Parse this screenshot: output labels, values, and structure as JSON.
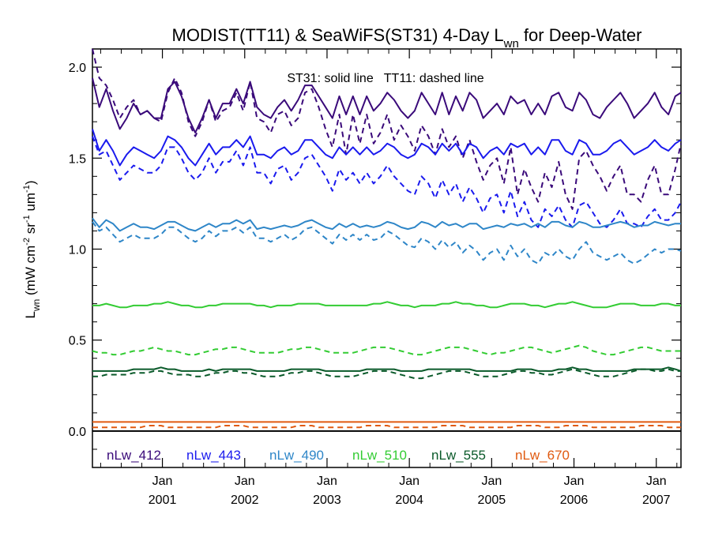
{
  "chart_data": {
    "type": "line",
    "title": {
      "main": "MODIST(TT11) & SeaWiFS(ST31) 4-Day L",
      "sub": "wn",
      "tail": " for Deep-Water"
    },
    "ylabel": {
      "main": "L",
      "sub": "wn",
      "unit_a": " (mW cm",
      "sup1": "-2",
      "unit_b": " sr",
      "sup2": "-1",
      "unit_c": " um",
      "sup3": "-1",
      "unit_d": ")"
    },
    "annotation": "ST31: solid line   TT11: dashed line",
    "xlim": [
      2000.15,
      2007.3
    ],
    "ylim": [
      -0.2,
      2.1
    ],
    "yticks": [
      {
        "value": 0.0,
        "label": "0.0"
      },
      {
        "value": 0.5,
        "label": "0.5"
      },
      {
        "value": 1.0,
        "label": "1.0"
      },
      {
        "value": 1.5,
        "label": "1.5"
      },
      {
        "value": 2.0,
        "label": "2.0"
      }
    ],
    "xticks": [
      {
        "value": 2001.0,
        "month": "Jan",
        "year": "2001"
      },
      {
        "value": 2002.0,
        "month": "Jan",
        "year": "2002"
      },
      {
        "value": 2003.0,
        "month": "Jan",
        "year": "2003"
      },
      {
        "value": 2004.0,
        "month": "Jan",
        "year": "2004"
      },
      {
        "value": 2005.0,
        "month": "Jan",
        "year": "2005"
      },
      {
        "value": 2006.0,
        "month": "Jan",
        "year": "2006"
      },
      {
        "value": 2007.0,
        "month": "Jan",
        "year": "2007"
      }
    ],
    "zero_line": 0.0,
    "series": [
      {
        "name": "nLw_412",
        "color": "#3a0a7a",
        "x_start": 2000.15,
        "x_step": 0.0833,
        "solid": [
          1.94,
          1.78,
          1.88,
          1.76,
          1.66,
          1.72,
          1.8,
          1.74,
          1.76,
          1.72,
          1.72,
          1.88,
          1.92,
          1.84,
          1.72,
          1.64,
          1.72,
          1.82,
          1.72,
          1.8,
          1.8,
          1.88,
          1.8,
          1.92,
          1.78,
          1.74,
          1.72,
          1.78,
          1.82,
          1.76,
          1.82,
          1.9,
          1.9,
          1.84,
          1.78,
          1.72,
          1.84,
          1.74,
          1.84,
          1.74,
          1.84,
          1.76,
          1.8,
          1.86,
          1.82,
          1.76,
          1.72,
          1.76,
          1.86,
          1.8,
          1.74,
          1.86,
          1.74,
          1.84,
          1.76,
          1.86,
          1.82,
          1.72,
          1.76,
          1.8,
          1.74,
          1.84,
          1.8,
          1.82,
          1.74,
          1.8,
          1.74,
          1.84,
          1.86,
          1.78,
          1.76,
          1.86,
          1.82,
          1.74,
          1.72,
          1.78,
          1.82,
          1.86,
          1.8,
          1.72,
          1.76,
          1.8,
          1.86,
          1.78,
          1.74,
          1.84,
          1.86
        ],
        "dashed": [
          2.1,
          1.94,
          1.9,
          1.82,
          1.72,
          1.78,
          1.82,
          1.74,
          1.76,
          1.72,
          1.7,
          1.86,
          1.94,
          1.86,
          1.7,
          1.62,
          1.7,
          1.82,
          1.7,
          1.76,
          1.78,
          1.86,
          1.76,
          1.92,
          1.72,
          1.7,
          1.64,
          1.74,
          1.76,
          1.68,
          1.72,
          1.86,
          1.88,
          1.78,
          1.66,
          1.56,
          1.74,
          1.52,
          1.74,
          1.58,
          1.74,
          1.58,
          1.64,
          1.74,
          1.6,
          1.68,
          1.62,
          1.54,
          1.68,
          1.62,
          1.52,
          1.66,
          1.56,
          1.62,
          1.5,
          1.6,
          1.48,
          1.38,
          1.46,
          1.5,
          1.36,
          1.56,
          1.3,
          1.44,
          1.34,
          1.26,
          1.42,
          1.34,
          1.48,
          1.3,
          1.22,
          1.5,
          1.54,
          1.46,
          1.4,
          1.32,
          1.4,
          1.46,
          1.3,
          1.3,
          1.26,
          1.38,
          1.46,
          1.3,
          1.3,
          1.44,
          1.58
        ]
      },
      {
        "name": "nLw_443",
        "color": "#1a1aee",
        "x_start": 2000.15,
        "x_step": 0.0833,
        "solid": [
          1.66,
          1.54,
          1.6,
          1.54,
          1.46,
          1.52,
          1.56,
          1.54,
          1.52,
          1.5,
          1.54,
          1.62,
          1.6,
          1.56,
          1.5,
          1.46,
          1.52,
          1.58,
          1.52,
          1.56,
          1.56,
          1.6,
          1.56,
          1.62,
          1.52,
          1.52,
          1.5,
          1.54,
          1.56,
          1.52,
          1.54,
          1.6,
          1.6,
          1.56,
          1.52,
          1.5,
          1.56,
          1.52,
          1.56,
          1.52,
          1.56,
          1.52,
          1.54,
          1.58,
          1.56,
          1.52,
          1.5,
          1.52,
          1.58,
          1.56,
          1.52,
          1.58,
          1.54,
          1.58,
          1.52,
          1.58,
          1.56,
          1.5,
          1.54,
          1.56,
          1.52,
          1.58,
          1.56,
          1.58,
          1.52,
          1.56,
          1.52,
          1.6,
          1.6,
          1.54,
          1.52,
          1.6,
          1.58,
          1.52,
          1.52,
          1.54,
          1.58,
          1.6,
          1.56,
          1.52,
          1.54,
          1.56,
          1.6,
          1.56,
          1.54,
          1.58,
          1.6
        ],
        "dashed": [
          1.62,
          1.52,
          1.54,
          1.46,
          1.38,
          1.42,
          1.46,
          1.44,
          1.42,
          1.42,
          1.46,
          1.56,
          1.56,
          1.5,
          1.42,
          1.38,
          1.42,
          1.5,
          1.42,
          1.48,
          1.48,
          1.54,
          1.46,
          1.56,
          1.42,
          1.42,
          1.36,
          1.44,
          1.46,
          1.38,
          1.42,
          1.5,
          1.52,
          1.46,
          1.4,
          1.32,
          1.44,
          1.38,
          1.42,
          1.36,
          1.42,
          1.36,
          1.4,
          1.46,
          1.4,
          1.36,
          1.32,
          1.3,
          1.4,
          1.36,
          1.28,
          1.38,
          1.3,
          1.36,
          1.26,
          1.34,
          1.28,
          1.2,
          1.28,
          1.3,
          1.2,
          1.32,
          1.18,
          1.26,
          1.16,
          1.12,
          1.22,
          1.18,
          1.24,
          1.16,
          1.12,
          1.24,
          1.26,
          1.2,
          1.14,
          1.12,
          1.16,
          1.22,
          1.14,
          1.14,
          1.12,
          1.18,
          1.22,
          1.16,
          1.16,
          1.2,
          1.26
        ]
      },
      {
        "name": "nLw_490",
        "color": "#2e86c8",
        "x_start": 2000.15,
        "x_step": 0.0833,
        "solid": [
          1.17,
          1.12,
          1.16,
          1.14,
          1.1,
          1.12,
          1.14,
          1.12,
          1.12,
          1.11,
          1.13,
          1.15,
          1.15,
          1.13,
          1.11,
          1.1,
          1.12,
          1.14,
          1.12,
          1.14,
          1.14,
          1.16,
          1.14,
          1.16,
          1.11,
          1.12,
          1.11,
          1.12,
          1.13,
          1.12,
          1.13,
          1.15,
          1.16,
          1.14,
          1.12,
          1.11,
          1.14,
          1.12,
          1.14,
          1.12,
          1.13,
          1.12,
          1.13,
          1.15,
          1.14,
          1.12,
          1.11,
          1.12,
          1.15,
          1.14,
          1.12,
          1.15,
          1.13,
          1.14,
          1.12,
          1.14,
          1.14,
          1.11,
          1.12,
          1.13,
          1.12,
          1.14,
          1.13,
          1.14,
          1.12,
          1.14,
          1.12,
          1.15,
          1.15,
          1.13,
          1.12,
          1.15,
          1.14,
          1.12,
          1.12,
          1.13,
          1.14,
          1.15,
          1.14,
          1.12,
          1.13,
          1.13,
          1.15,
          1.14,
          1.13,
          1.14,
          1.14
        ],
        "dashed": [
          1.15,
          1.1,
          1.12,
          1.08,
          1.04,
          1.06,
          1.08,
          1.06,
          1.06,
          1.06,
          1.08,
          1.12,
          1.12,
          1.09,
          1.06,
          1.04,
          1.06,
          1.1,
          1.07,
          1.1,
          1.1,
          1.12,
          1.09,
          1.12,
          1.06,
          1.06,
          1.04,
          1.06,
          1.08,
          1.05,
          1.07,
          1.11,
          1.12,
          1.09,
          1.06,
          1.03,
          1.08,
          1.05,
          1.08,
          1.05,
          1.08,
          1.05,
          1.06,
          1.1,
          1.08,
          1.05,
          1.02,
          1.01,
          1.06,
          1.04,
          1.0,
          1.05,
          1.01,
          1.04,
          0.98,
          1.02,
          0.99,
          0.94,
          0.98,
          1.0,
          0.94,
          1.02,
          0.96,
          1.0,
          0.94,
          0.92,
          0.98,
          0.96,
          1.0,
          0.96,
          0.94,
          1.0,
          1.04,
          0.98,
          0.96,
          0.94,
          0.96,
          0.98,
          0.94,
          0.92,
          0.94,
          0.97,
          1.0,
          0.98,
          1.0,
          1.0,
          0.99
        ]
      },
      {
        "name": "nLw_510",
        "color": "#33cc33",
        "x_start": 2000.15,
        "x_step": 0.0833,
        "solid_series": true,
        "solid": [
          0.69,
          0.69,
          0.7,
          0.69,
          0.68,
          0.68,
          0.69,
          0.69,
          0.69,
          0.7,
          0.7,
          0.71,
          0.7,
          0.69,
          0.69,
          0.68,
          0.68,
          0.69,
          0.69,
          0.7,
          0.7,
          0.7,
          0.7,
          0.7,
          0.69,
          0.69,
          0.68,
          0.69,
          0.69,
          0.69,
          0.7,
          0.7,
          0.7,
          0.7,
          0.69,
          0.69,
          0.69,
          0.69,
          0.69,
          0.69,
          0.69,
          0.7,
          0.7,
          0.71,
          0.7,
          0.69,
          0.69,
          0.68,
          0.69,
          0.69,
          0.69,
          0.7,
          0.7,
          0.71,
          0.7,
          0.7,
          0.69,
          0.69,
          0.68,
          0.68,
          0.69,
          0.7,
          0.7,
          0.7,
          0.69,
          0.69,
          0.68,
          0.69,
          0.7,
          0.7,
          0.71,
          0.7,
          0.69,
          0.68,
          0.68,
          0.68,
          0.69,
          0.7,
          0.7,
          0.7,
          0.69,
          0.69,
          0.69,
          0.7,
          0.7,
          0.69,
          0.69
        ],
        "dashed": [
          0.44,
          0.43,
          0.43,
          0.42,
          0.42,
          0.43,
          0.44,
          0.44,
          0.45,
          0.46,
          0.45,
          0.44,
          0.44,
          0.43,
          0.42,
          0.42,
          0.43,
          0.44,
          0.45,
          0.45,
          0.46,
          0.46,
          0.45,
          0.44,
          0.43,
          0.43,
          0.43,
          0.43,
          0.44,
          0.45,
          0.45,
          0.46,
          0.46,
          0.45,
          0.44,
          0.43,
          0.43,
          0.43,
          0.43,
          0.44,
          0.45,
          0.46,
          0.46,
          0.46,
          0.45,
          0.44,
          0.43,
          0.42,
          0.42,
          0.43,
          0.44,
          0.45,
          0.46,
          0.46,
          0.46,
          0.45,
          0.44,
          0.43,
          0.42,
          0.43,
          0.43,
          0.44,
          0.45,
          0.46,
          0.46,
          0.45,
          0.44,
          0.43,
          0.44,
          0.45,
          0.46,
          0.47,
          0.46,
          0.44,
          0.43,
          0.42,
          0.42,
          0.43,
          0.44,
          0.45,
          0.46,
          0.46,
          0.45,
          0.44,
          0.44,
          0.44,
          0.44
        ]
      },
      {
        "name": "nLw_555",
        "color": "#0a5a2a",
        "x_start": 2000.15,
        "x_step": 0.0833,
        "solid": [
          0.33,
          0.33,
          0.33,
          0.33,
          0.33,
          0.33,
          0.34,
          0.34,
          0.34,
          0.34,
          0.35,
          0.34,
          0.34,
          0.33,
          0.33,
          0.33,
          0.33,
          0.34,
          0.33,
          0.34,
          0.34,
          0.34,
          0.34,
          0.34,
          0.33,
          0.33,
          0.33,
          0.33,
          0.33,
          0.34,
          0.34,
          0.34,
          0.34,
          0.34,
          0.33,
          0.33,
          0.33,
          0.33,
          0.33,
          0.33,
          0.34,
          0.34,
          0.34,
          0.34,
          0.34,
          0.33,
          0.33,
          0.33,
          0.33,
          0.34,
          0.34,
          0.34,
          0.34,
          0.34,
          0.34,
          0.34,
          0.33,
          0.33,
          0.33,
          0.33,
          0.33,
          0.33,
          0.34,
          0.34,
          0.34,
          0.33,
          0.33,
          0.33,
          0.34,
          0.34,
          0.35,
          0.34,
          0.34,
          0.33,
          0.33,
          0.33,
          0.33,
          0.33,
          0.33,
          0.34,
          0.34,
          0.34,
          0.34,
          0.34,
          0.35,
          0.34,
          0.33
        ],
        "dashed": [
          0.3,
          0.3,
          0.31,
          0.31,
          0.31,
          0.31,
          0.32,
          0.32,
          0.32,
          0.33,
          0.33,
          0.32,
          0.31,
          0.31,
          0.31,
          0.3,
          0.3,
          0.31,
          0.32,
          0.32,
          0.33,
          0.33,
          0.32,
          0.32,
          0.31,
          0.3,
          0.3,
          0.3,
          0.31,
          0.32,
          0.32,
          0.33,
          0.33,
          0.32,
          0.31,
          0.3,
          0.3,
          0.3,
          0.3,
          0.31,
          0.32,
          0.33,
          0.33,
          0.33,
          0.32,
          0.31,
          0.3,
          0.29,
          0.29,
          0.3,
          0.31,
          0.32,
          0.33,
          0.33,
          0.33,
          0.32,
          0.31,
          0.3,
          0.3,
          0.3,
          0.31,
          0.32,
          0.33,
          0.33,
          0.32,
          0.32,
          0.31,
          0.31,
          0.32,
          0.33,
          0.34,
          0.33,
          0.32,
          0.31,
          0.3,
          0.3,
          0.3,
          0.31,
          0.32,
          0.33,
          0.34,
          0.34,
          0.33,
          0.33,
          0.34,
          0.33,
          0.33
        ]
      },
      {
        "name": "nLw_670",
        "color": "#e05a10",
        "x_start": 2000.15,
        "x_step": 0.0833,
        "solid": [
          0.05,
          0.05,
          0.05,
          0.05,
          0.05,
          0.05,
          0.05,
          0.05,
          0.05,
          0.05,
          0.05,
          0.05,
          0.05,
          0.05,
          0.05,
          0.05,
          0.05,
          0.05,
          0.05,
          0.05,
          0.05,
          0.05,
          0.05,
          0.05,
          0.05,
          0.05,
          0.05,
          0.05,
          0.05,
          0.05,
          0.05,
          0.05,
          0.05,
          0.05,
          0.05,
          0.05,
          0.05,
          0.05,
          0.05,
          0.05,
          0.05,
          0.05,
          0.05,
          0.05,
          0.05,
          0.05,
          0.05,
          0.05,
          0.05,
          0.05,
          0.05,
          0.05,
          0.05,
          0.05,
          0.05,
          0.05,
          0.05,
          0.05,
          0.05,
          0.05,
          0.05,
          0.05,
          0.05,
          0.05,
          0.05,
          0.05,
          0.05,
          0.05,
          0.05,
          0.05,
          0.05,
          0.05,
          0.05,
          0.05,
          0.05,
          0.05,
          0.05,
          0.05,
          0.05,
          0.05,
          0.05,
          0.05,
          0.05,
          0.05,
          0.05,
          0.05,
          0.05
        ],
        "dashed": [
          0.02,
          0.02,
          0.02,
          0.02,
          0.02,
          0.02,
          0.02,
          0.02,
          0.03,
          0.03,
          0.03,
          0.02,
          0.02,
          0.02,
          0.02,
          0.02,
          0.02,
          0.02,
          0.02,
          0.03,
          0.03,
          0.03,
          0.03,
          0.02,
          0.02,
          0.02,
          0.02,
          0.02,
          0.02,
          0.02,
          0.03,
          0.03,
          0.03,
          0.02,
          0.02,
          0.02,
          0.02,
          0.02,
          0.02,
          0.02,
          0.03,
          0.03,
          0.03,
          0.03,
          0.02,
          0.02,
          0.02,
          0.02,
          0.02,
          0.02,
          0.02,
          0.03,
          0.03,
          0.03,
          0.03,
          0.02,
          0.02,
          0.02,
          0.02,
          0.02,
          0.02,
          0.02,
          0.03,
          0.03,
          0.03,
          0.03,
          0.02,
          0.02,
          0.02,
          0.03,
          0.03,
          0.03,
          0.03,
          0.02,
          0.02,
          0.02,
          0.02,
          0.02,
          0.02,
          0.02,
          0.03,
          0.03,
          0.03,
          0.03,
          0.02,
          0.02,
          0.02
        ]
      }
    ]
  }
}
